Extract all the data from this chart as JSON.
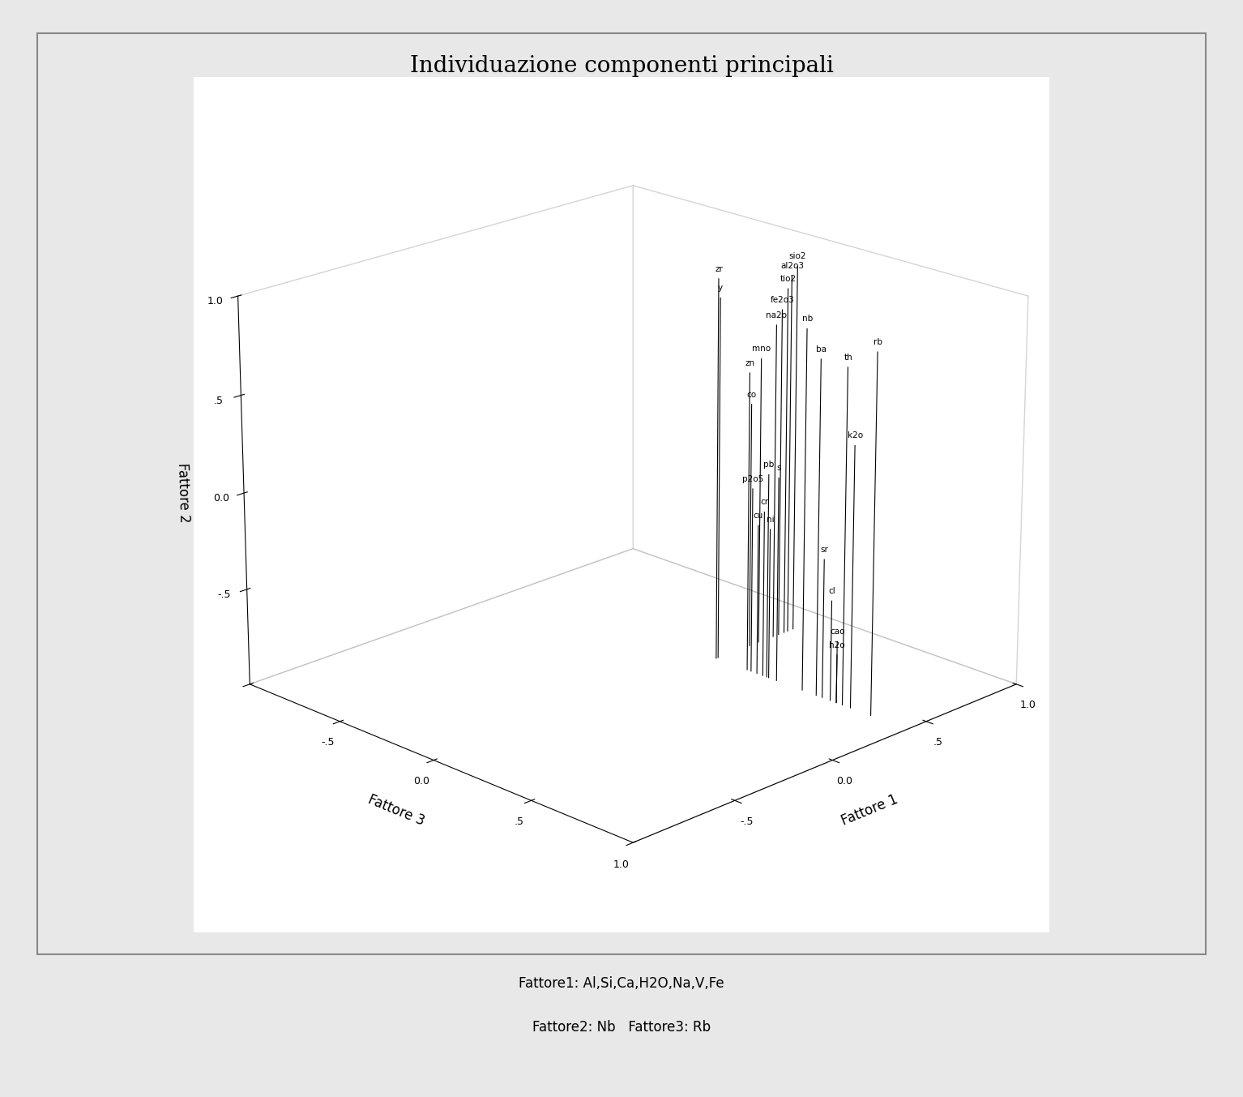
{
  "title": "Individuazione componenti principali",
  "xlabel": "Fattore 1",
  "ylabel": "Fattore 3",
  "zlabel": "Fattore 2",
  "footnote1": "Fattore1: Al,Si,Ca,H2O,Na,V,Fe",
  "footnote2": "Fattore2: Nb   Fattore3: Rb",
  "background_color": "#ffffff",
  "fig_bg": "#e8e8e8",
  "variables": {
    "sio2": [
      0.82,
      0.04,
      0.92
    ],
    "al2o3": [
      0.79,
      0.04,
      0.88
    ],
    "tio2": [
      0.77,
      0.04,
      0.82
    ],
    "fe2o3": [
      0.74,
      0.04,
      0.72
    ],
    "na2o": [
      0.71,
      0.04,
      0.65
    ],
    "mno": [
      0.63,
      0.04,
      0.5
    ],
    "co": [
      0.58,
      0.04,
      0.28
    ],
    "zr": [
      0.4,
      0.04,
      0.98
    ],
    "y": [
      0.41,
      0.04,
      0.88
    ],
    "nb": [
      0.4,
      0.48,
      0.86
    ],
    "rb": [
      0.4,
      0.82,
      0.85
    ],
    "ba": [
      0.4,
      0.55,
      0.73
    ],
    "th": [
      0.4,
      0.68,
      0.73
    ],
    "zn": [
      0.4,
      0.2,
      0.55
    ],
    "k2o": [
      0.4,
      0.72,
      0.35
    ],
    "pb": [
      0.4,
      0.3,
      0.06
    ],
    "s": [
      0.4,
      0.35,
      0.06
    ],
    "p2o5": [
      0.4,
      0.22,
      -0.04
    ],
    "cr": [
      0.4,
      0.28,
      -0.14
    ],
    "cu": [
      0.4,
      0.25,
      -0.22
    ],
    "ni": [
      0.4,
      0.31,
      -0.22
    ],
    "sr": [
      0.4,
      0.58,
      -0.28
    ],
    "cl": [
      0.4,
      0.62,
      -0.48
    ],
    "cao": [
      0.4,
      0.65,
      -0.68
    ],
    "h2o": [
      0.4,
      0.65,
      -0.75
    ]
  }
}
